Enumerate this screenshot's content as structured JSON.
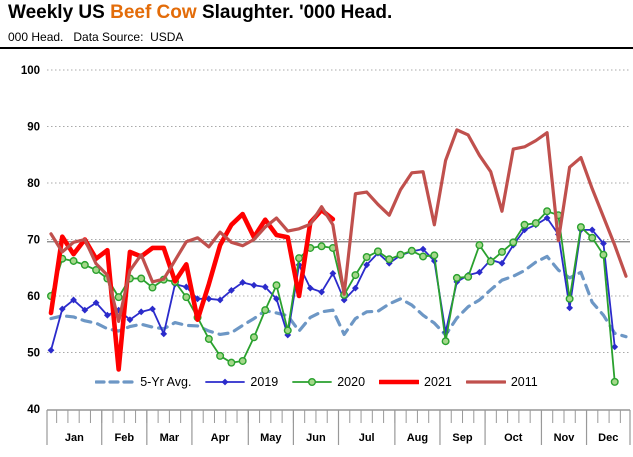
{
  "header": {
    "title_prefix": "Weekly US ",
    "title_highlight": "Beef Cow",
    "title_suffix": " Slaughter. '000 Head.",
    "highlight_color": "#e36c09",
    "subtitle": "000 Head.   Data Source:  USDA"
  },
  "chart_data": {
    "type": "line",
    "title": "Weekly US Beef Cow Slaughter. '000 Head.",
    "ylabel": "000 Head",
    "ylim": [
      40,
      100
    ],
    "yticks": [
      40,
      50,
      60,
      70,
      80,
      90,
      100
    ],
    "grid": "dotted-horizontal",
    "reference_line_y": 69.6,
    "x_unit": "week-of-year",
    "months": [
      "Jan",
      "Feb",
      "Mar",
      "Apr",
      "May",
      "Jun",
      "Jul",
      "Aug",
      "Sep",
      "Oct",
      "Nov",
      "Dec"
    ],
    "weeks_per_month": [
      5,
      4,
      4,
      5,
      4,
      4,
      5,
      4,
      4,
      5,
      4,
      4
    ],
    "legend_position": "bottom",
    "series": [
      {
        "name": "5-Yr Avg.",
        "color": "#6d97c5",
        "style": "dashed",
        "width": 3.2,
        "marker": "none",
        "values": [
          56.0,
          56.5,
          56.3,
          55.6,
          55.2,
          54.2,
          53.8,
          54.6,
          55.0,
          54.5,
          54.2,
          55.3,
          54.8,
          54.7,
          53.8,
          53.2,
          53.5,
          54.8,
          56.0,
          57.4,
          57.0,
          56.5,
          53.8,
          56.2,
          57.2,
          57.5,
          53.2,
          56.0,
          57.2,
          57.3,
          58.6,
          59.5,
          58.4,
          56.6,
          55.2,
          53.1,
          56.1,
          58.1,
          59.3,
          61.1,
          62.8,
          63.5,
          64.5,
          66.0,
          67.0,
          64.6,
          63.2,
          64.2,
          58.9,
          56.6,
          53.4,
          52.8
        ]
      },
      {
        "name": "2019",
        "color": "#2b2bcb",
        "style": "solid",
        "width": 1.8,
        "marker": "diamond",
        "values": [
          50.4,
          57.7,
          59.3,
          57.5,
          58.8,
          56.6,
          57.5,
          55.8,
          57.2,
          57.7,
          53.3,
          62.1,
          61.6,
          59.5,
          59.5,
          59.3,
          61.0,
          62.4,
          61.9,
          61.6,
          59.5,
          53.1,
          65.5,
          61.4,
          60.7,
          64.0,
          59.3,
          61.4,
          65.5,
          67.6,
          65.8,
          67.2,
          67.9,
          68.3,
          66.2,
          53.6,
          62.5,
          63.7,
          64.2,
          66.4,
          65.8,
          69.0,
          71.7,
          72.6,
          73.8,
          70.9,
          57.9,
          71.7,
          71.7,
          69.3,
          51.0
        ]
      },
      {
        "name": "2020",
        "color": "#2aa12e",
        "style": "solid",
        "width": 1.8,
        "marker": "circle",
        "marker_fill": "#a4d88a",
        "values": [
          60.0,
          66.6,
          66.2,
          65.5,
          64.6,
          63.1,
          59.8,
          63.1,
          63.1,
          61.5,
          62.9,
          62.5,
          59.8,
          56.2,
          52.4,
          49.4,
          48.2,
          48.5,
          52.7,
          57.5,
          61.9,
          53.9,
          66.7,
          68.5,
          68.8,
          68.5,
          60.2,
          63.7,
          66.9,
          67.9,
          66.5,
          67.3,
          68.0,
          67.0,
          67.2,
          52.0,
          63.2,
          63.4,
          69.0,
          66.1,
          67.8,
          69.5,
          72.6,
          72.9,
          75.0,
          74.3,
          59.5,
          72.2,
          70.3,
          67.3,
          44.8
        ]
      },
      {
        "name": "2021",
        "color": "#ff0000",
        "style": "solid",
        "width": 4.6,
        "marker": "none",
        "values": [
          57.0,
          70.5,
          67.4,
          70.0,
          66.6,
          68.1,
          47.0,
          67.8,
          67.0,
          68.5,
          68.5,
          62.6,
          65.6,
          55.8,
          62.1,
          69.0,
          72.6,
          74.5,
          70.4,
          73.5,
          70.8,
          70.4,
          60.0,
          73.0,
          75.2,
          73.6
        ]
      },
      {
        "name": "2011",
        "color": "#c0504d",
        "style": "solid",
        "width": 3.2,
        "marker": "none",
        "values": [
          71.0,
          67.8,
          69.5,
          70.0,
          65.7,
          63.7,
          55.5,
          64.5,
          67.3,
          62.5,
          63.0,
          66.3,
          69.6,
          70.3,
          68.7,
          71.3,
          69.5,
          68.9,
          70.0,
          72.2,
          73.8,
          71.5,
          71.9,
          72.7,
          75.8,
          72.6,
          60.3,
          78.1,
          78.4,
          76.2,
          74.3,
          78.8,
          81.8,
          82.0,
          72.6,
          84.0,
          89.4,
          88.5,
          84.9,
          82.0,
          75.0,
          86.0,
          86.4,
          87.5,
          88.9,
          69.8,
          82.8,
          84.5,
          79.0,
          74.0,
          69.0,
          63.5
        ]
      }
    ]
  }
}
